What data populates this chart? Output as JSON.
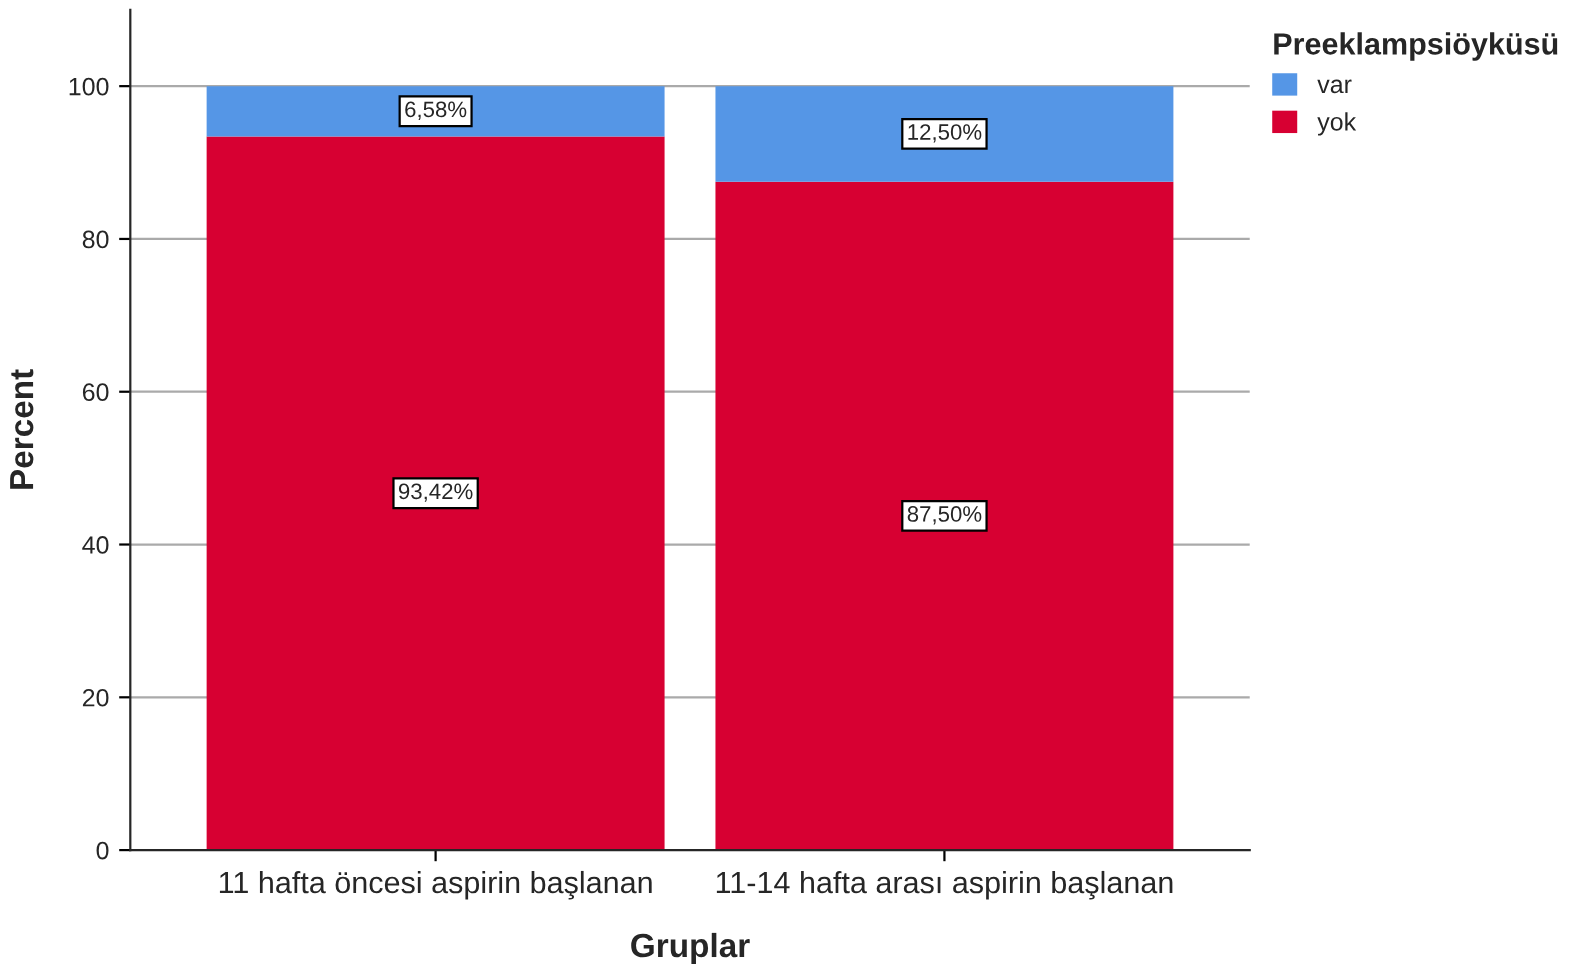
{
  "chart_data": {
    "type": "bar",
    "stacked": true,
    "xlabel": "Gruplar",
    "ylabel": "Percent",
    "legend_title": "Preeklampsiöyküsü",
    "categories": [
      "11 hafta öncesi aspirin başlanan",
      "11-14 hafta arası aspirin başlanan"
    ],
    "series": [
      {
        "name": "yok",
        "color": "#d70032",
        "values": [
          93.42,
          87.5
        ],
        "value_labels": [
          "93,42%",
          "87,50%"
        ]
      },
      {
        "name": "var",
        "color": "#5596e6",
        "values": [
          6.58,
          12.5
        ],
        "value_labels": [
          "6,58%",
          "12,50%"
        ]
      }
    ],
    "ylim": [
      0,
      110
    ],
    "yticks": [
      0,
      20,
      40,
      60,
      80,
      100
    ],
    "grid": "y",
    "legend": "top right"
  }
}
